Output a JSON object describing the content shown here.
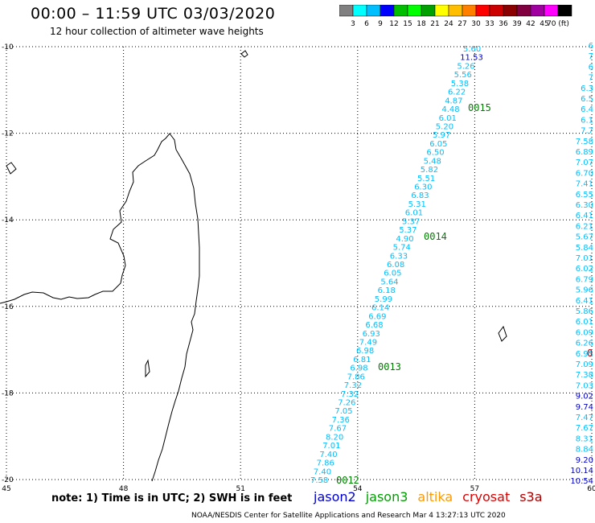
{
  "title": "00:00 – 11:59 UTC 03/03/2020",
  "subtitle": "12 hour collection of altimeter wave heights",
  "colorbar": {
    "colors": [
      "#808080",
      "#00ffff",
      "#00bfff",
      "#0000ff",
      "#00bf00",
      "#00ff00",
      "#00a000",
      "#ffff00",
      "#ffbf00",
      "#ff8000",
      "#ff0000",
      "#cc0000",
      "#8b0000",
      "#800040",
      "#a000a0",
      "#ff00ff",
      "#000000"
    ],
    "labels": [
      "3",
      "6",
      "9",
      "12",
      "15",
      "18",
      "21",
      "24",
      "27",
      "30",
      "33",
      "36",
      "39",
      "42",
      "45",
      "70 (ft)"
    ]
  },
  "map": {
    "lon_ticks": [
      "45",
      "48",
      "51",
      "54",
      "57",
      "60"
    ],
    "lat_ticks": [
      "-10",
      "-12",
      "-14",
      "-16",
      "-18",
      "-20"
    ]
  },
  "tracks": {
    "main": [
      "5.60",
      "11.53",
      "5.26",
      "5.56",
      "5.38",
      "6.22",
      "4.87",
      "4.48",
      "6.01",
      "5.20",
      "5.97",
      "6.05",
      "6.50",
      "5.48",
      "5.82",
      "5.51",
      "6.30",
      "6.83",
      "5.31",
      "6.01",
      "5.37",
      "5.37",
      "4.90",
      "5.74",
      "6.33",
      "6.08",
      "6.05",
      "5.64",
      "6.18",
      "5.99",
      "6.14",
      "6.69",
      "6.68",
      "6.93",
      "7.49",
      "6.98",
      "6.81",
      "6.98",
      "7.86",
      "7.32",
      "7.32",
      "7.26",
      "7.05",
      "7.36",
      "7.67",
      "8.20",
      "7.01",
      "7.40",
      "7.86",
      "7.40",
      "7.58"
    ],
    "right": [
      "6",
      "7",
      "6",
      "7",
      "6.3",
      "6.5",
      "6.4",
      "6.1",
      "7.7",
      "7.58",
      "6.89",
      "7.07",
      "6.70",
      "7.41",
      "6.55",
      "6.30",
      "6.41",
      "6.21",
      "5.67",
      "5.84",
      "7.01",
      "6.02",
      "6.79",
      "5.96",
      "6.41",
      "5.86",
      "6.01",
      "6.09",
      "6.26",
      "6.93",
      "7.09",
      "7.38",
      "7.03",
      "9.02",
      "9.74",
      "7.47",
      "7.67",
      "8.31",
      "8.84",
      "9.20",
      "10.14",
      "10.54"
    ]
  },
  "passes": [
    "0015",
    "0014",
    "0013",
    "0012"
  ],
  "edge_label": "0",
  "note": "note: 1) Time is in UTC; 2) SWH is in feet",
  "legend": {
    "jason2": "jason2",
    "jason3": "jason3",
    "altika": "altika",
    "cryosat": "cryosat",
    "s3a": "s3a"
  },
  "credit": "NOAA/NESDIS Center for Satellite Applications and Research    Mar  4 13:27:13 UTC 2020"
}
